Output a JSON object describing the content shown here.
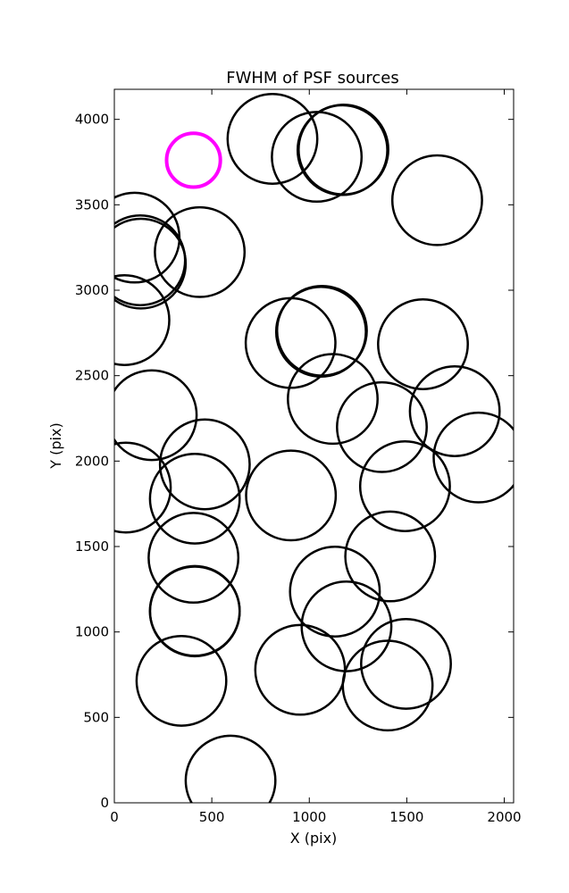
{
  "chart_data": {
    "type": "scatter",
    "title": "FWHM of PSF sources",
    "xlabel": "X (pix)",
    "ylabel": "Y (pix)",
    "xlim": [
      0,
      2048
    ],
    "ylim": [
      0,
      4176
    ],
    "xticks": [
      0,
      500,
      1000,
      1500,
      2000
    ],
    "yticks": [
      0,
      500,
      1000,
      1500,
      2000,
      2500,
      3000,
      3500,
      4000
    ],
    "grid": false,
    "legend": "none",
    "marker": "open-circle",
    "reference_color": "#ff00ff",
    "source_color": "#000000",
    "reference_marker": {
      "x": 406,
      "y": 3761,
      "radius": 138
    },
    "series": [
      {
        "x": [
          811,
          1038,
          1170,
          1175,
          1656,
          104,
          136,
          133,
          438,
          52,
          904,
          1060,
          1065,
          1583,
          1120,
          192,
          1372,
          1746,
          1868,
          464,
          59,
          413,
          906,
          1491,
          1415,
          406,
          1131,
          413,
          1191,
          413,
          1496,
          953,
          344,
          1402,
          596
        ],
        "y": [
          3886,
          3781,
          3820,
          3823,
          3527,
          3308,
          3156,
          3175,
          3223,
          2825,
          2691,
          2757,
          2763,
          2684,
          2364,
          2269,
          2199,
          2292,
          2021,
          1981,
          1845,
          1780,
          1799,
          1853,
          1442,
          1434,
          1236,
          1120,
          1033,
          1123,
          813,
          778,
          714,
          686,
          130
        ],
        "radius": [
          230,
          230,
          230,
          230,
          230,
          230,
          230,
          230,
          230,
          230,
          230,
          230,
          230,
          230,
          230,
          230,
          230,
          230,
          230,
          230,
          230,
          230,
          230,
          230,
          230,
          230,
          230,
          230,
          230,
          230,
          230,
          230,
          230,
          230,
          230
        ]
      }
    ]
  }
}
